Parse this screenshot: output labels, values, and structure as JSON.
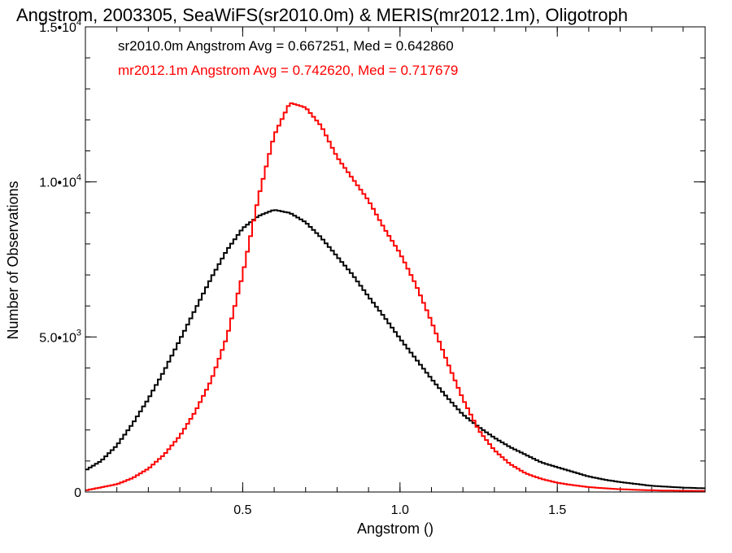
{
  "chart_data": {
    "type": "line",
    "title": "Angstrom, 2003305, SeaWiFS(sr2010.0m) & MERIS(mr2012.1m), Oligotroph",
    "xlabel": "Angstrom ()",
    "ylabel": "Number of Observations",
    "xlim": [
      0.0,
      1.97
    ],
    "ylim": [
      0,
      15000
    ],
    "x_ticks": [
      {
        "value": 0.5,
        "label": "0.5"
      },
      {
        "value": 1.0,
        "label": "1.0"
      },
      {
        "value": 1.5,
        "label": "1.5"
      }
    ],
    "y_ticks": [
      {
        "value": 0,
        "mantissa": "0",
        "exponent": ""
      },
      {
        "value": 5000,
        "mantissa": "5.0•10",
        "exponent": "3"
      },
      {
        "value": 10000,
        "mantissa": "1.0•10",
        "exponent": "4"
      },
      {
        "value": 15000,
        "mantissa": "1.5•10",
        "exponent": "4"
      }
    ],
    "x_minor_step": 0.1,
    "y_minor_step": 1000,
    "grid": false,
    "legend_position": "top-left",
    "line_style": "step",
    "series": [
      {
        "name": "sr2010.0m",
        "color": "#000000",
        "annotation": "sr2010.0m Angstrom Avg = 0.667251, Med = 0.642860",
        "points": [
          [
            0.0,
            700
          ],
          [
            0.05,
            1000
          ],
          [
            0.1,
            1500
          ],
          [
            0.15,
            2200
          ],
          [
            0.2,
            3000
          ],
          [
            0.25,
            3900
          ],
          [
            0.3,
            4900
          ],
          [
            0.35,
            5900
          ],
          [
            0.4,
            6900
          ],
          [
            0.45,
            7800
          ],
          [
            0.5,
            8500
          ],
          [
            0.55,
            8900
          ],
          [
            0.6,
            9100
          ],
          [
            0.65,
            9000
          ],
          [
            0.7,
            8700
          ],
          [
            0.75,
            8200
          ],
          [
            0.8,
            7600
          ],
          [
            0.85,
            7000
          ],
          [
            0.9,
            6300
          ],
          [
            0.95,
            5650
          ],
          [
            1.0,
            4950
          ],
          [
            1.05,
            4300
          ],
          [
            1.1,
            3650
          ],
          [
            1.15,
            3050
          ],
          [
            1.2,
            2500
          ],
          [
            1.25,
            2100
          ],
          [
            1.3,
            1750
          ],
          [
            1.35,
            1450
          ],
          [
            1.4,
            1200
          ],
          [
            1.45,
            950
          ],
          [
            1.5,
            800
          ],
          [
            1.55,
            650
          ],
          [
            1.6,
            500
          ],
          [
            1.65,
            400
          ],
          [
            1.7,
            320
          ],
          [
            1.75,
            260
          ],
          [
            1.8,
            200
          ],
          [
            1.85,
            170
          ],
          [
            1.9,
            140
          ],
          [
            1.97,
            120
          ]
        ]
      },
      {
        "name": "mr2012.1m",
        "color": "#ff0000",
        "annotation": "mr2012.1m Angstrom Avg = 0.742620, Med = 0.717679",
        "points": [
          [
            0.0,
            50
          ],
          [
            0.05,
            150
          ],
          [
            0.1,
            250
          ],
          [
            0.15,
            450
          ],
          [
            0.2,
            750
          ],
          [
            0.25,
            1200
          ],
          [
            0.3,
            1800
          ],
          [
            0.35,
            2600
          ],
          [
            0.4,
            3600
          ],
          [
            0.45,
            5000
          ],
          [
            0.5,
            7000
          ],
          [
            0.55,
            9500
          ],
          [
            0.6,
            11500
          ],
          [
            0.65,
            12550
          ],
          [
            0.7,
            12400
          ],
          [
            0.75,
            11800
          ],
          [
            0.8,
            10800
          ],
          [
            0.85,
            10100
          ],
          [
            0.9,
            9400
          ],
          [
            0.95,
            8500
          ],
          [
            1.0,
            7700
          ],
          [
            1.05,
            6700
          ],
          [
            1.1,
            5500
          ],
          [
            1.15,
            4200
          ],
          [
            1.2,
            3000
          ],
          [
            1.25,
            2000
          ],
          [
            1.3,
            1350
          ],
          [
            1.35,
            900
          ],
          [
            1.4,
            600
          ],
          [
            1.45,
            420
          ],
          [
            1.5,
            300
          ],
          [
            1.55,
            220
          ],
          [
            1.6,
            160
          ],
          [
            1.65,
            120
          ],
          [
            1.7,
            90
          ],
          [
            1.75,
            70
          ],
          [
            1.8,
            55
          ],
          [
            1.85,
            45
          ],
          [
            1.9,
            40
          ],
          [
            1.97,
            35
          ]
        ]
      }
    ]
  }
}
